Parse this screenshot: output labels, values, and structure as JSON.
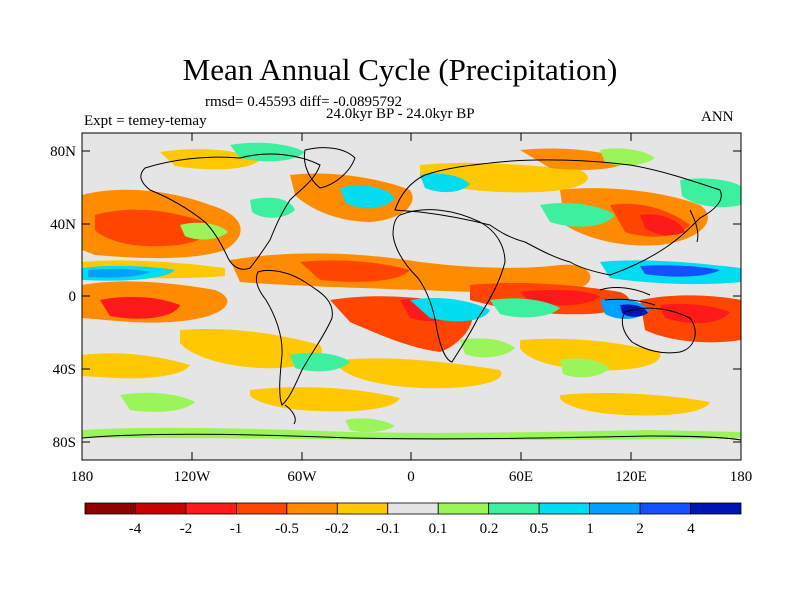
{
  "header": {
    "title": "Mean Annual Cycle (Precipitation)",
    "stats": "rmsd= 0.45593 diff= -0.0895792",
    "period": "24.0kyr BP - 24.0kyr BP",
    "experiment": "Expt = temey-temay",
    "season": "ANN"
  },
  "axes": {
    "lat_labels": [
      "80N",
      "40N",
      "0",
      "40S",
      "80S"
    ],
    "lon_labels": [
      "180",
      "120W",
      "60W",
      "0",
      "60E",
      "120E",
      "180"
    ]
  },
  "colorbar": {
    "labels": [
      "-4",
      "-2",
      "-1",
      "-0.5",
      "-0.2",
      "-0.1",
      "0.1",
      "0.2",
      "0.5",
      "1",
      "2",
      "4"
    ],
    "colors": [
      "#8b0000",
      "#c80000",
      "#ff1a1a",
      "#ff4500",
      "#ff8c00",
      "#ffc800",
      "#e5e5e5",
      "#9bf55a",
      "#3cf0a0",
      "#00dcf0",
      "#00a0ff",
      "#1450ff",
      "#0014b4"
    ]
  }
}
